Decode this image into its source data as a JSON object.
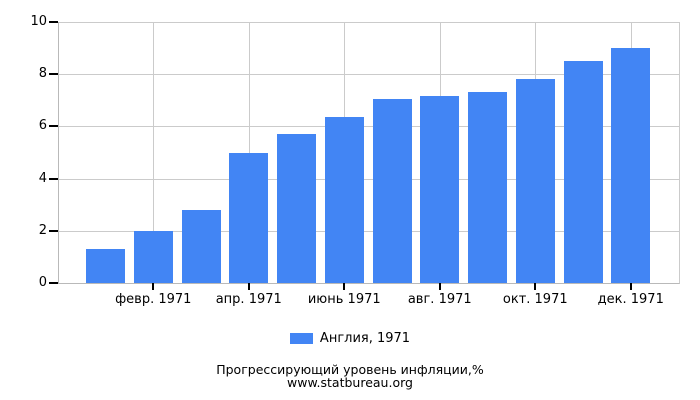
{
  "chart_data": {
    "type": "bar",
    "title": "Прогрессирующий уровень инфляции,%",
    "source": "www.statbureau.org",
    "series": [
      {
        "name": "Англия, 1971",
        "values": [
          1.3,
          2.0,
          2.8,
          5.0,
          5.7,
          6.35,
          7.05,
          7.15,
          7.3,
          7.8,
          8.5,
          9.0
        ]
      }
    ],
    "x_tick_labels": [
      "февр. 1971",
      "апр. 1971",
      "июнь 1971",
      "авг. 1971",
      "окт. 1971",
      "дек. 1971"
    ],
    "x_tick_bar_indices": [
      1,
      3,
      5,
      7,
      9,
      11
    ],
    "y_ticks": [
      0,
      2,
      4,
      6,
      8,
      10
    ],
    "ylim": [
      0,
      10
    ],
    "grid": true,
    "legend_position": "bottom"
  },
  "legend": {
    "label": "Англия, 1971"
  },
  "footer": {
    "title": "Прогрессирующий уровень инфляции,%",
    "source": "www.statbureau.org"
  },
  "colors": {
    "bar": "#4285F4",
    "grid": "#CBCBCB",
    "axis": "#B9B9B9",
    "tick": "#000000",
    "text": "#000000"
  }
}
